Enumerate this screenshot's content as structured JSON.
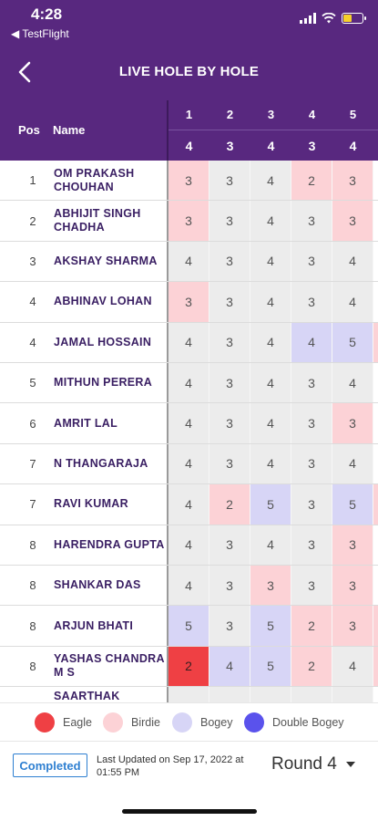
{
  "status_bar": {
    "time": "4:28",
    "back_app": "◀ TestFlight"
  },
  "nav": {
    "title": "LIVE HOLE BY HOLE",
    "back_icon": "chevron-left-icon"
  },
  "table": {
    "headers": {
      "pos": "Pos",
      "name": "Name"
    },
    "holes": [
      "1",
      "2",
      "3",
      "4",
      "5"
    ],
    "pars": [
      "4",
      "3",
      "4",
      "3",
      "4"
    ],
    "rows": [
      {
        "pos": "1",
        "name": "OM PRAKASH CHOUHAN",
        "scores": [
          "3",
          "3",
          "4",
          "2",
          "3"
        ],
        "types": [
          "birdie",
          "",
          "",
          "birdie",
          "birdie"
        ],
        "edge": ""
      },
      {
        "pos": "2",
        "name": "ABHIJIT SINGH CHADHA",
        "scores": [
          "3",
          "3",
          "4",
          "3",
          "3"
        ],
        "types": [
          "birdie",
          "",
          "",
          "",
          "birdie"
        ],
        "edge": ""
      },
      {
        "pos": "3",
        "name": "AKSHAY SHARMA",
        "scores": [
          "4",
          "3",
          "4",
          "3",
          "4"
        ],
        "types": [
          "",
          "",
          "",
          "",
          ""
        ],
        "edge": ""
      },
      {
        "pos": "4",
        "name": "ABHINAV LOHAN",
        "scores": [
          "3",
          "3",
          "4",
          "3",
          "4"
        ],
        "types": [
          "birdie",
          "",
          "",
          "",
          ""
        ],
        "edge": ""
      },
      {
        "pos": "4",
        "name": "JAMAL HOSSAIN",
        "scores": [
          "4",
          "3",
          "4",
          "4",
          "5"
        ],
        "types": [
          "",
          "",
          "",
          "bogey",
          "bogey"
        ],
        "edge": "birdie"
      },
      {
        "pos": "5",
        "name": "MITHUN PERERA",
        "scores": [
          "4",
          "3",
          "4",
          "3",
          "4"
        ],
        "types": [
          "",
          "",
          "",
          "",
          ""
        ],
        "edge": ""
      },
      {
        "pos": "6",
        "name": "AMRIT LAL",
        "scores": [
          "4",
          "3",
          "4",
          "3",
          "3"
        ],
        "types": [
          "",
          "",
          "",
          "",
          "birdie"
        ],
        "edge": ""
      },
      {
        "pos": "7",
        "name": "N THANGARAJA",
        "scores": [
          "4",
          "3",
          "4",
          "3",
          "4"
        ],
        "types": [
          "",
          "",
          "",
          "",
          ""
        ],
        "edge": ""
      },
      {
        "pos": "7",
        "name": "RAVI KUMAR",
        "scores": [
          "4",
          "2",
          "5",
          "3",
          "5"
        ],
        "types": [
          "",
          "birdie",
          "bogey",
          "",
          "bogey"
        ],
        "edge": "birdie"
      },
      {
        "pos": "8",
        "name": "HARENDRA GUPTA",
        "scores": [
          "4",
          "3",
          "4",
          "3",
          "3"
        ],
        "types": [
          "",
          "",
          "",
          "",
          "birdie"
        ],
        "edge": ""
      },
      {
        "pos": "8",
        "name": "SHANKAR DAS",
        "scores": [
          "4",
          "3",
          "3",
          "3",
          "3"
        ],
        "types": [
          "",
          "",
          "birdie",
          "",
          "birdie"
        ],
        "edge": ""
      },
      {
        "pos": "8",
        "name": "ARJUN BHATI",
        "scores": [
          "5",
          "3",
          "5",
          "2",
          "3"
        ],
        "types": [
          "bogey",
          "",
          "bogey",
          "birdie",
          "birdie"
        ],
        "edge": "birdie"
      },
      {
        "pos": "8",
        "name": "YASHAS CHANDRA M S",
        "scores": [
          "2",
          "4",
          "5",
          "2",
          "4"
        ],
        "types": [
          "eagle",
          "bogey",
          "bogey",
          "birdie",
          ""
        ],
        "edge": "birdie"
      },
      {
        "pos": "",
        "name": "SAARTHAK",
        "scores": [
          "",
          "",
          "",
          "",
          ""
        ],
        "types": [
          "",
          "",
          "",
          "",
          ""
        ],
        "edge": ""
      }
    ]
  },
  "legend": [
    {
      "label": "Eagle",
      "color": "#ef4044"
    },
    {
      "label": "Birdie",
      "color": "#fcd2d6"
    },
    {
      "label": "Bogey",
      "color": "#d7d5f6"
    },
    {
      "label": "Double Bogey",
      "color": "#5a52ec"
    }
  ],
  "footer": {
    "status": "Completed",
    "updated_line1": "Last Updated on Sep 17, 2022 at",
    "updated_line2": "01:55 PM",
    "round": "Round 4"
  },
  "colors": {
    "purple": "#58287f",
    "eagle": "#ef4044",
    "birdie": "#fcd2d6",
    "bogey": "#d7d5f6",
    "double_bogey": "#5a52ec",
    "par": "#ececec"
  }
}
